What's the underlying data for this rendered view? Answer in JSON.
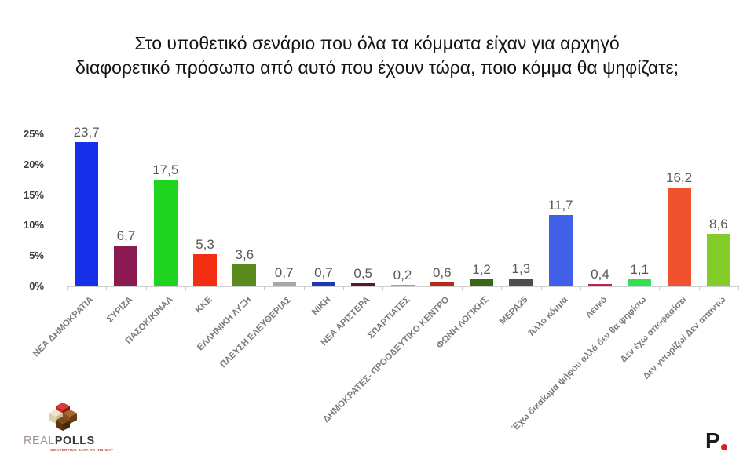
{
  "title": {
    "line1": "Στο υποθετικό σενάριο που όλα τα κόμματα είχαν για αρχηγό",
    "line2": "διαφορετικό πρόσωπο από αυτό που έχουν τώρα, ποιο κόμμα θα ψηφίζατε;"
  },
  "chart_data": {
    "type": "bar",
    "title": "Στο υποθετικό σενάριο που όλα τα κόμματα είχαν για αρχηγό διαφορετικό πρόσωπο από αυτό που έχουν τώρα, ποιο κόμμα θα ψηφίζατε;",
    "categories": [
      "ΝΕΑ ΔΗΜΟΚΡΑΤΙΑ",
      "ΣΥΡΙΖΑ",
      "ΠΑΣΟΚ/ΚΙΝΑΛ",
      "ΚΚΕ",
      "ΕΛΛΗΝΙΚΗ ΛΥΣΗ",
      "ΠΛΕΥΣΗ ΕΛΕΥΘΕΡΙΑΣ",
      "ΝΙΚΗ",
      "ΝΕΑ ΑΡΙΣΤΕΡΑ",
      "ΣΠΑΡΤΙΑΤΕΣ",
      "ΔΗΜΟΚΡΑΤΕΣ- ΠΡΟΟΔΕΥΤΙΚΟ ΚΕΝΤΡΟ",
      "ΦΩΝΗ ΛΟΓΙΚΗΣ",
      "ΜΕΡΑ25",
      "Άλλο κόμμα",
      "Λευκό",
      "Έχω δικαίωμα ψήφου αλλά δεν θα ψηφίσω",
      "Δεν έχω αποφασίσει",
      "Δεν γνωρίζω/ Δεν απαντώ"
    ],
    "values": [
      23.7,
      6.7,
      17.5,
      5.3,
      3.6,
      0.7,
      0.7,
      0.5,
      0.2,
      0.6,
      1.2,
      1.3,
      11.7,
      0.4,
      1.1,
      16.2,
      8.6
    ],
    "value_labels": [
      "23,7",
      "6,7",
      "17,5",
      "5,3",
      "3,6",
      "0,7",
      "0,7",
      "0,5",
      "0,2",
      "0,6",
      "1,2",
      "1,3",
      "11,7",
      "0,4",
      "1,1",
      "16,2",
      "8,6"
    ],
    "bar_colors": [
      "#1530e8",
      "#8c1a52",
      "#1ed41e",
      "#f22d12",
      "#5a8a1e",
      "#a6a6a6",
      "#1c38b4",
      "#5c1430",
      "#6cc06c",
      "#b32a16",
      "#3a661a",
      "#4d4d4d",
      "#4060e8",
      "#c21b60",
      "#2ee052",
      "#f0512e",
      "#84cc29"
    ],
    "y_ticks": [
      "0%",
      "5%",
      "10%",
      "15%",
      "20%",
      "25%"
    ],
    "ylim": [
      0,
      25
    ],
    "xlabel": "",
    "ylabel": "",
    "grid": false,
    "legend": false,
    "value_label_color": "#595959",
    "axis_label_color": "#7c7c7c"
  },
  "footer": {
    "realpolls": {
      "word_light": "REAL",
      "word_bold": "POLLS",
      "tagline": "CONVERTING DATA TO INSIGHT"
    },
    "publisher": {
      "letter": "P",
      "dot_color": "#e02020"
    }
  }
}
